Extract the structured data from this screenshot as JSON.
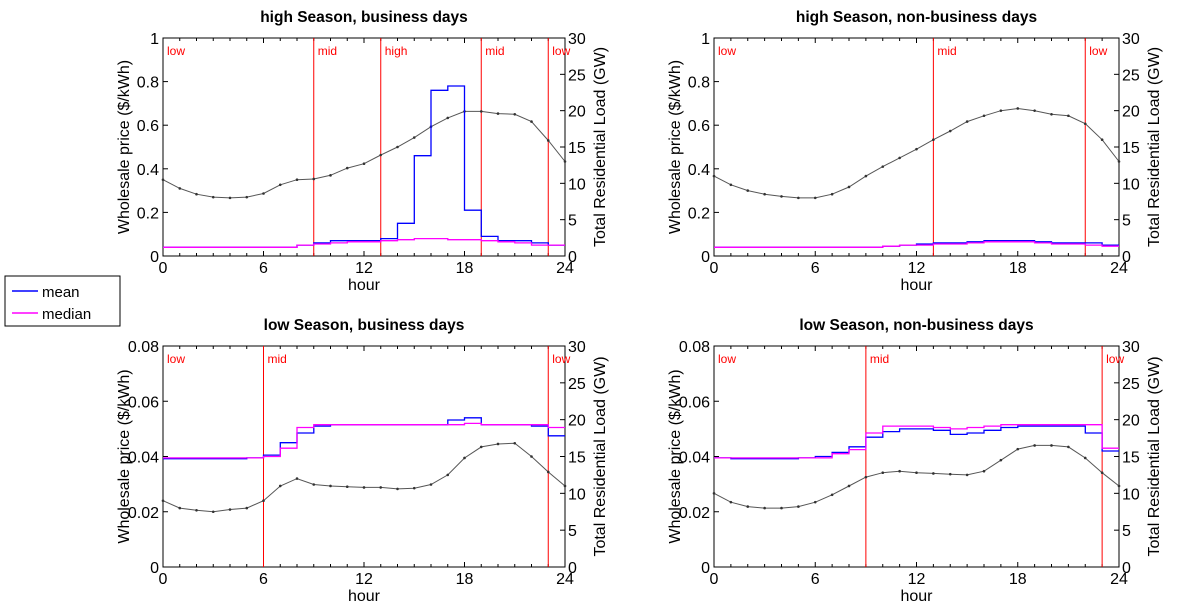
{
  "legend": {
    "mean_label": "mean",
    "median_label": "median"
  },
  "chart_data": [
    {
      "type": "line",
      "title": "high Season, business days",
      "xlabel": "hour",
      "ylabel": "Wholesale price ($/kWh)",
      "y2label": "Total Residential Load (GW)",
      "xlim": [
        0,
        24
      ],
      "ylim": [
        0,
        1
      ],
      "y2lim": [
        0,
        30
      ],
      "xticks": [
        "0",
        "6",
        "12",
        "18",
        "24"
      ],
      "yticks": [
        "0",
        "0.2",
        "0.4",
        "0.6",
        "0.8",
        "1"
      ],
      "y2ticks": [
        "0",
        "5",
        "10",
        "15",
        "20",
        "25",
        "30"
      ],
      "periods": [
        {
          "label": "low",
          "start": 0
        },
        {
          "label": "mid",
          "start": 9
        },
        {
          "label": "high",
          "start": 13
        },
        {
          "label": "mid",
          "start": 19
        },
        {
          "label": "low",
          "start": 23
        }
      ],
      "series": [
        {
          "name": "mean",
          "color": "#0000ff",
          "step": true,
          "values": [
            0.04,
            0.04,
            0.04,
            0.04,
            0.04,
            0.04,
            0.04,
            0.04,
            0.05,
            0.06,
            0.07,
            0.07,
            0.07,
            0.08,
            0.15,
            0.46,
            0.76,
            0.78,
            0.21,
            0.09,
            0.07,
            0.07,
            0.06,
            0.05
          ]
        },
        {
          "name": "median",
          "color": "#ff00ff",
          "step": true,
          "values": [
            0.04,
            0.04,
            0.04,
            0.04,
            0.04,
            0.04,
            0.04,
            0.04,
            0.05,
            0.055,
            0.06,
            0.065,
            0.065,
            0.07,
            0.075,
            0.08,
            0.08,
            0.075,
            0.075,
            0.07,
            0.065,
            0.06,
            0.05,
            0.05
          ]
        }
      ],
      "load": {
        "color": "#000000",
        "values": [
          10.5,
          9.3,
          8.5,
          8.1,
          8.0,
          8.1,
          8.6,
          9.8,
          10.5,
          10.6,
          11.1,
          12.1,
          12.7,
          13.9,
          15.0,
          16.3,
          17.8,
          19.0,
          19.9,
          19.9,
          19.6,
          19.5,
          18.5,
          15.9,
          13.0
        ]
      }
    },
    {
      "type": "line",
      "title": "high Season, non-business days",
      "xlabel": "hour",
      "ylabel": "Wholesale price ($/kWh)",
      "y2label": "Total Residential Load (GW)",
      "xlim": [
        0,
        24
      ],
      "ylim": [
        0,
        1
      ],
      "y2lim": [
        0,
        30
      ],
      "xticks": [
        "0",
        "6",
        "12",
        "18",
        "24"
      ],
      "yticks": [
        "0",
        "0.2",
        "0.4",
        "0.6",
        "0.8",
        "1"
      ],
      "y2ticks": [
        "0",
        "5",
        "10",
        "15",
        "20",
        "25",
        "30"
      ],
      "periods": [
        {
          "label": "low",
          "start": 0
        },
        {
          "label": "mid",
          "start": 13
        },
        {
          "label": "low",
          "start": 22
        }
      ],
      "series": [
        {
          "name": "mean",
          "color": "#0000ff",
          "step": true,
          "values": [
            0.04,
            0.04,
            0.04,
            0.04,
            0.04,
            0.04,
            0.04,
            0.04,
            0.04,
            0.04,
            0.045,
            0.05,
            0.055,
            0.06,
            0.06,
            0.065,
            0.07,
            0.07,
            0.07,
            0.065,
            0.06,
            0.06,
            0.06,
            0.05
          ]
        },
        {
          "name": "median",
          "color": "#ff00ff",
          "step": true,
          "values": [
            0.04,
            0.04,
            0.04,
            0.04,
            0.04,
            0.04,
            0.04,
            0.04,
            0.04,
            0.04,
            0.045,
            0.05,
            0.05,
            0.055,
            0.055,
            0.06,
            0.065,
            0.065,
            0.065,
            0.06,
            0.055,
            0.055,
            0.05,
            0.045
          ]
        }
      ],
      "load": {
        "color": "#000000",
        "values": [
          11.0,
          9.8,
          9.0,
          8.5,
          8.2,
          8.0,
          8.0,
          8.5,
          9.5,
          11.0,
          12.3,
          13.5,
          14.7,
          16.0,
          17.2,
          18.5,
          19.3,
          20.0,
          20.3,
          20.0,
          19.5,
          19.3,
          18.2,
          16.0,
          13.0
        ]
      }
    },
    {
      "type": "line",
      "title": "low Season, business days",
      "xlabel": "hour",
      "ylabel": "Wholesale price ($/kWh)",
      "y2label": "Total Residential Load (GW)",
      "xlim": [
        0,
        24
      ],
      "ylim": [
        0,
        0.08
      ],
      "y2lim": [
        0,
        30
      ],
      "xticks": [
        "0",
        "6",
        "12",
        "18",
        "24"
      ],
      "yticks": [
        "0",
        "0.02",
        "0.04",
        "0.06",
        "0.08"
      ],
      "y2ticks": [
        "0",
        "5",
        "10",
        "15",
        "20",
        "25",
        "30"
      ],
      "periods": [
        {
          "label": "low",
          "start": 0
        },
        {
          "label": "mid",
          "start": 6
        },
        {
          "label": "low",
          "start": 23
        }
      ],
      "series": [
        {
          "name": "mean",
          "color": "#0000ff",
          "step": true,
          "values": [
            0.0392,
            0.0392,
            0.0392,
            0.0392,
            0.0392,
            0.0395,
            0.0405,
            0.045,
            0.0485,
            0.051,
            0.0515,
            0.0515,
            0.0515,
            0.0515,
            0.0515,
            0.0515,
            0.0515,
            0.0532,
            0.054,
            0.0515,
            0.0515,
            0.0515,
            0.051,
            0.0475
          ]
        },
        {
          "name": "median",
          "color": "#ff00ff",
          "step": true,
          "values": [
            0.0395,
            0.0395,
            0.0395,
            0.0395,
            0.0395,
            0.0395,
            0.04,
            0.043,
            0.0505,
            0.0515,
            0.0515,
            0.0515,
            0.0515,
            0.0515,
            0.0515,
            0.0515,
            0.0515,
            0.0515,
            0.052,
            0.0515,
            0.0515,
            0.0515,
            0.0515,
            0.0505
          ]
        }
      ],
      "load": {
        "color": "#000000",
        "values": [
          9.0,
          8.0,
          7.7,
          7.5,
          7.8,
          8.0,
          9.0,
          11.0,
          12.0,
          11.2,
          11.0,
          10.9,
          10.8,
          10.8,
          10.6,
          10.7,
          11.2,
          12.5,
          14.8,
          16.3,
          16.7,
          16.8,
          15.0,
          12.9,
          11.0
        ]
      }
    },
    {
      "type": "line",
      "title": "low Season, non-business days",
      "xlabel": "hour",
      "ylabel": "Wholesale price ($/kWh)",
      "y2label": "Total Residential Load (GW)",
      "xlim": [
        0,
        24
      ],
      "ylim": [
        0,
        0.08
      ],
      "y2lim": [
        0,
        30
      ],
      "xticks": [
        "0",
        "6",
        "12",
        "18",
        "24"
      ],
      "yticks": [
        "0",
        "0.02",
        "0.04",
        "0.06",
        "0.08"
      ],
      "y2ticks": [
        "0",
        "5",
        "10",
        "15",
        "20",
        "25",
        "30"
      ],
      "periods": [
        {
          "label": "low",
          "start": 0
        },
        {
          "label": "mid",
          "start": 9
        },
        {
          "label": "low",
          "start": 23
        }
      ],
      "series": [
        {
          "name": "mean",
          "color": "#0000ff",
          "step": true,
          "values": [
            0.0395,
            0.0392,
            0.0392,
            0.0392,
            0.0392,
            0.0395,
            0.04,
            0.0415,
            0.0435,
            0.047,
            0.049,
            0.05,
            0.05,
            0.0495,
            0.048,
            0.0485,
            0.0495,
            0.0505,
            0.051,
            0.051,
            0.051,
            0.051,
            0.0485,
            0.042
          ]
        },
        {
          "name": "median",
          "color": "#ff00ff",
          "step": true,
          "values": [
            0.0395,
            0.0395,
            0.0395,
            0.0395,
            0.0395,
            0.0395,
            0.0395,
            0.041,
            0.0425,
            0.0485,
            0.051,
            0.051,
            0.051,
            0.0505,
            0.05,
            0.0505,
            0.051,
            0.0515,
            0.0515,
            0.0515,
            0.0515,
            0.0515,
            0.0515,
            0.043
          ]
        }
      ],
      "load": {
        "color": "#000000",
        "values": [
          10.0,
          8.8,
          8.2,
          8.0,
          8.0,
          8.2,
          8.8,
          9.8,
          11.0,
          12.2,
          12.8,
          13.0,
          12.8,
          12.7,
          12.6,
          12.5,
          13.0,
          14.5,
          16.0,
          16.5,
          16.5,
          16.3,
          14.8,
          12.8,
          11.0
        ]
      }
    }
  ]
}
